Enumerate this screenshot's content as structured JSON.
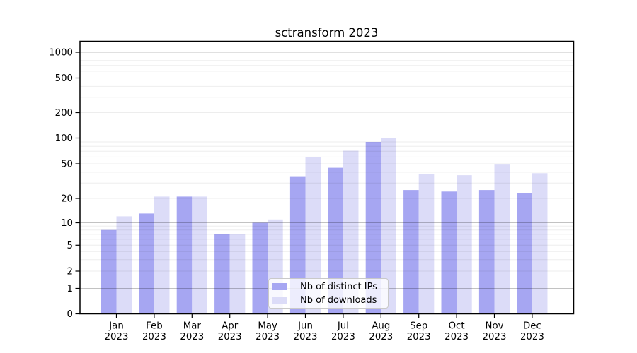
{
  "figure": {
    "background": "#ffffff"
  },
  "title": "sctransform 2023",
  "legend": {
    "items": [
      {
        "label": "Nb of distinct IPs",
        "color": "#a6a6f2"
      },
      {
        "label": "Nb of downloads",
        "color": "#dcdcf8"
      }
    ]
  },
  "chart_data": {
    "type": "bar",
    "title": "sctransform 2023",
    "categories": [
      "Jan",
      "Feb",
      "Mar",
      "Apr",
      "May",
      "Jun",
      "Jul",
      "Aug",
      "Sep",
      "Oct",
      "Nov",
      "Dec"
    ],
    "year_label": "2023",
    "series": [
      {
        "name": "Nb of distinct IPs",
        "color": "#a6a6f2",
        "values": [
          8,
          13,
          21,
          7,
          10,
          36,
          45,
          90,
          25,
          24,
          25,
          23
        ]
      },
      {
        "name": "Nb of downloads",
        "color": "#dcdcf8",
        "values": [
          12,
          21,
          21,
          7,
          11,
          60,
          71,
          100,
          38,
          37,
          49,
          39
        ]
      }
    ],
    "yticks": [
      0,
      1,
      2,
      5,
      10,
      20,
      50,
      100,
      200,
      500,
      1000
    ],
    "xlabel": "",
    "ylabel": "",
    "yscale": "log (with 0 baseline)",
    "ylim": [
      0,
      1300
    ],
    "grid": "horizontal major and minor log gridlines drawn over bars",
    "legend_position": "lower center"
  }
}
